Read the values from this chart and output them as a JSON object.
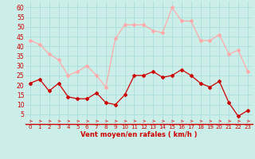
{
  "hours": [
    0,
    1,
    2,
    3,
    4,
    5,
    6,
    7,
    8,
    9,
    10,
    11,
    12,
    13,
    14,
    15,
    16,
    17,
    18,
    19,
    20,
    21,
    22,
    23
  ],
  "vent_moyen": [
    21,
    23,
    17,
    21,
    14,
    13,
    13,
    16,
    11,
    10,
    15,
    25,
    25,
    27,
    24,
    25,
    28,
    25,
    21,
    19,
    22,
    11,
    4,
    7
  ],
  "rafales": [
    43,
    41,
    36,
    33,
    25,
    27,
    30,
    25,
    19,
    44,
    51,
    51,
    51,
    48,
    47,
    60,
    53,
    53,
    43,
    43,
    46,
    36,
    38,
    27
  ],
  "bg_color": "#cceee8",
  "grid_color": "#aadddd",
  "dark_red": "#cc0000",
  "light_pink": "#ffaaaa",
  "xlabel": "Vent moyen/en rafales ( km/h )",
  "yticks": [
    5,
    10,
    15,
    20,
    25,
    30,
    35,
    40,
    45,
    50,
    55,
    60
  ],
  "ylim": [
    0,
    63
  ],
  "xlim": [
    -0.5,
    23.5
  ],
  "arrow_color": "#dd4444"
}
